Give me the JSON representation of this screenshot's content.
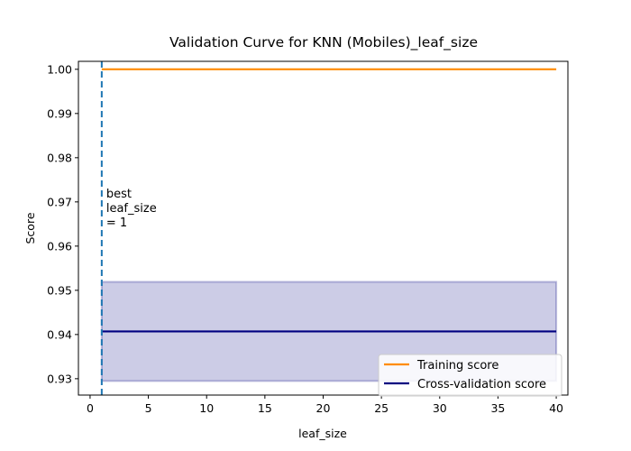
{
  "chart_data": {
    "type": "line",
    "title": "Validation Curve for KNN (Mobiles)_leaf_size",
    "xlabel": "leaf_size",
    "ylabel": "Score",
    "xlim": [
      -1,
      41
    ],
    "ylim": [
      0.9263,
      1.0018
    ],
    "xticks": [
      0,
      5,
      10,
      15,
      20,
      25,
      30,
      35,
      40
    ],
    "yticks": [
      0.93,
      0.94,
      0.95,
      0.96,
      0.97,
      0.98,
      0.99,
      1.0
    ],
    "ytick_labels": [
      "0.93",
      "0.94",
      "0.95",
      "0.96",
      "0.97",
      "0.98",
      "0.99",
      "1.00"
    ],
    "grid": false,
    "legend_position": "lower-right",
    "series": [
      {
        "name": "Training score",
        "color": "#ff8c00",
        "x": [
          1,
          40
        ],
        "y": [
          1.0,
          1.0
        ],
        "band_lower": [
          1.0,
          1.0
        ],
        "band_upper": [
          1.0,
          1.0
        ]
      },
      {
        "name": "Cross-validation score",
        "color": "#000080",
        "x": [
          1,
          40
        ],
        "y": [
          0.9407,
          0.9407
        ],
        "band_lower": [
          0.9295,
          0.9295
        ],
        "band_upper": [
          0.9519,
          0.9519
        ]
      }
    ],
    "vline": {
      "x": 1,
      "color": "#1f77b4",
      "style": "dashed",
      "annotation_lines": [
        "best",
        "leaf_size",
        "= 1"
      ]
    }
  }
}
